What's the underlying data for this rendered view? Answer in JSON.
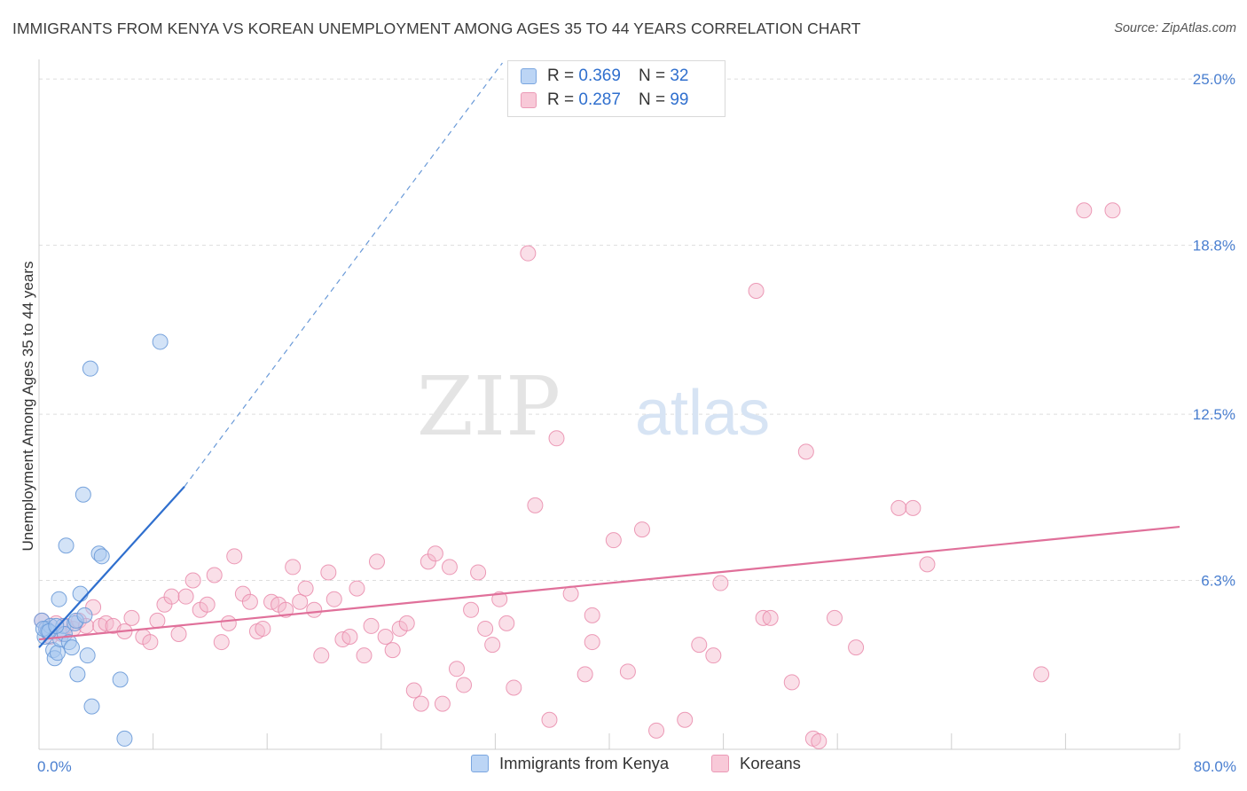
{
  "title": "IMMIGRANTS FROM KENYA VS KOREAN UNEMPLOYMENT AMONG AGES 35 TO 44 YEARS CORRELATION CHART",
  "source": "Source: ZipAtlas.com",
  "watermark": {
    "zip": "ZIP",
    "atlas": "atlas"
  },
  "legend": {
    "kenya": {
      "r_label": "R =",
      "r_value": "0.369",
      "n_label": "N =",
      "n_value": "32"
    },
    "koreans": {
      "r_label": "R =",
      "r_value": "0.287",
      "n_label": "N =",
      "n_value": "99"
    }
  },
  "colors": {
    "kenya_fill": "#a8c8f0",
    "kenya_stroke": "#6a9ad8",
    "kenya_line": "#2f6fce",
    "koreans_fill": "#f5b8cc",
    "koreans_stroke": "#e98aaa",
    "koreans_line": "#e0709a",
    "grid": "#dddddd",
    "tick_label": "#4a7fd0"
  },
  "chart_data": {
    "type": "scatter",
    "title": "IMMIGRANTS FROM KENYA VS KOREAN UNEMPLOYMENT AMONG AGES 35 TO 44 YEARS CORRELATION CHART",
    "xlabel": "",
    "ylabel": "Unemployment Among Ages 35 to 44 years",
    "xlim": [
      0,
      80
    ],
    "ylim": [
      0,
      25.6
    ],
    "x_tick_labels": [
      {
        "value": 0,
        "label": "0.0%"
      },
      {
        "value": 80,
        "label": "80.0%"
      }
    ],
    "y_tick_labels": [
      {
        "value": 6.3,
        "label": "6.3%"
      },
      {
        "value": 12.5,
        "label": "12.5%"
      },
      {
        "value": 18.8,
        "label": "18.8%"
      },
      {
        "value": 25.0,
        "label": "25.0%"
      }
    ],
    "series": [
      {
        "name": "Immigrants from Kenya",
        "points": [
          [
            0.2,
            4.8
          ],
          [
            0.4,
            4.2
          ],
          [
            0.5,
            4.5
          ],
          [
            0.6,
            4.4
          ],
          [
            0.8,
            4.6
          ],
          [
            1.0,
            3.7
          ],
          [
            1.1,
            3.4
          ],
          [
            1.3,
            3.6
          ],
          [
            1.4,
            5.6
          ],
          [
            1.5,
            4.1
          ],
          [
            1.7,
            4.6
          ],
          [
            1.8,
            4.3
          ],
          [
            1.9,
            7.6
          ],
          [
            2.1,
            4.0
          ],
          [
            2.3,
            3.8
          ],
          [
            2.5,
            4.7
          ],
          [
            2.6,
            4.8
          ],
          [
            2.7,
            2.8
          ],
          [
            2.9,
            5.8
          ],
          [
            3.1,
            9.5
          ],
          [
            3.2,
            5.0
          ],
          [
            3.4,
            3.5
          ],
          [
            3.6,
            14.2
          ],
          [
            3.7,
            1.6
          ],
          [
            4.2,
            7.3
          ],
          [
            4.4,
            7.2
          ],
          [
            5.7,
            2.6
          ],
          [
            6.0,
            0.4
          ],
          [
            8.5,
            15.2
          ],
          [
            0.3,
            4.5
          ],
          [
            0.7,
            4.4
          ],
          [
            1.2,
            4.6
          ]
        ],
        "trend": {
          "x": [
            0,
            10.2
          ],
          "y": [
            3.8,
            9.8
          ]
        },
        "trend_extended": {
          "x": [
            10.2,
            32.5
          ],
          "y": [
            9.8,
            25.6
          ]
        }
      },
      {
        "name": "Koreans",
        "points": [
          [
            0.2,
            4.8
          ],
          [
            0.5,
            4.5
          ],
          [
            0.8,
            4.2
          ],
          [
            1.2,
            4.7
          ],
          [
            1.6,
            4.3
          ],
          [
            1.9,
            4.6
          ],
          [
            2.4,
            4.5
          ],
          [
            2.8,
            4.8
          ],
          [
            3.3,
            4.6
          ],
          [
            3.8,
            5.3
          ],
          [
            4.3,
            4.6
          ],
          [
            4.7,
            4.7
          ],
          [
            5.2,
            4.6
          ],
          [
            6.0,
            4.4
          ],
          [
            6.5,
            4.9
          ],
          [
            7.3,
            4.2
          ],
          [
            7.8,
            4.0
          ],
          [
            8.3,
            4.8
          ],
          [
            8.8,
            5.4
          ],
          [
            9.3,
            5.7
          ],
          [
            9.8,
            4.3
          ],
          [
            10.3,
            5.7
          ],
          [
            10.8,
            6.3
          ],
          [
            11.3,
            5.2
          ],
          [
            11.8,
            5.4
          ],
          [
            12.3,
            6.5
          ],
          [
            12.8,
            4.0
          ],
          [
            13.3,
            4.7
          ],
          [
            13.7,
            7.2
          ],
          [
            14.3,
            5.8
          ],
          [
            14.8,
            5.5
          ],
          [
            15.3,
            4.4
          ],
          [
            15.7,
            4.5
          ],
          [
            16.3,
            5.5
          ],
          [
            16.8,
            5.4
          ],
          [
            17.3,
            5.2
          ],
          [
            17.8,
            6.8
          ],
          [
            18.3,
            5.5
          ],
          [
            18.7,
            6.0
          ],
          [
            19.3,
            5.2
          ],
          [
            19.8,
            3.5
          ],
          [
            20.3,
            6.6
          ],
          [
            20.7,
            5.6
          ],
          [
            21.3,
            4.1
          ],
          [
            21.8,
            4.2
          ],
          [
            22.3,
            6.0
          ],
          [
            22.8,
            3.5
          ],
          [
            23.3,
            4.6
          ],
          [
            23.7,
            7.0
          ],
          [
            24.3,
            4.2
          ],
          [
            24.8,
            3.7
          ],
          [
            25.3,
            4.5
          ],
          [
            25.8,
            4.7
          ],
          [
            26.3,
            2.2
          ],
          [
            26.8,
            1.7
          ],
          [
            27.3,
            7.0
          ],
          [
            27.8,
            7.3
          ],
          [
            28.3,
            1.7
          ],
          [
            28.8,
            6.8
          ],
          [
            29.3,
            3.0
          ],
          [
            29.8,
            2.4
          ],
          [
            30.3,
            5.2
          ],
          [
            30.8,
            6.6
          ],
          [
            31.3,
            4.5
          ],
          [
            31.8,
            3.9
          ],
          [
            32.3,
            5.6
          ],
          [
            32.8,
            4.7
          ],
          [
            33.3,
            2.3
          ],
          [
            34.3,
            18.5
          ],
          [
            34.8,
            9.1
          ],
          [
            35.8,
            1.1
          ],
          [
            36.3,
            11.6
          ],
          [
            37.3,
            5.8
          ],
          [
            38.3,
            2.8
          ],
          [
            38.8,
            5.0
          ],
          [
            38.8,
            4.0
          ],
          [
            40.3,
            7.8
          ],
          [
            41.3,
            2.9
          ],
          [
            42.3,
            8.2
          ],
          [
            43.3,
            0.7
          ],
          [
            45.3,
            1.1
          ],
          [
            46.3,
            3.9
          ],
          [
            47.3,
            3.5
          ],
          [
            47.8,
            6.2
          ],
          [
            50.3,
            17.1
          ],
          [
            50.8,
            4.9
          ],
          [
            51.3,
            4.9
          ],
          [
            52.8,
            2.5
          ],
          [
            53.8,
            11.1
          ],
          [
            54.3,
            0.4
          ],
          [
            54.7,
            0.3
          ],
          [
            55.8,
            4.9
          ],
          [
            57.3,
            3.8
          ],
          [
            60.3,
            9.0
          ],
          [
            61.3,
            9.0
          ],
          [
            62.3,
            6.9
          ],
          [
            70.3,
            2.8
          ],
          [
            73.3,
            20.1
          ],
          [
            75.3,
            20.1
          ]
        ],
        "trend": {
          "x": [
            0,
            80
          ],
          "y": [
            4.1,
            8.3
          ]
        }
      }
    ]
  },
  "bottom_legend": {
    "kenya_label": "Immigrants from Kenya",
    "koreans_label": "Koreans"
  }
}
